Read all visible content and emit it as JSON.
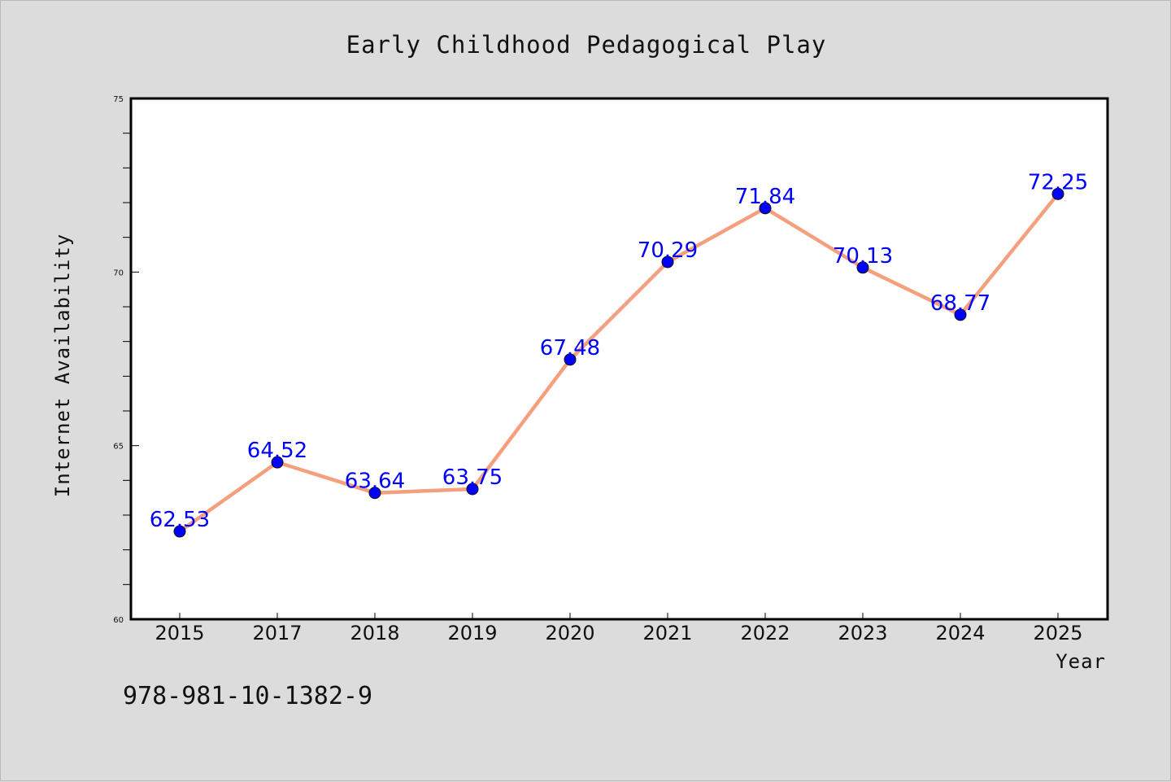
{
  "chart_data": {
    "type": "line",
    "title": "Early Childhood Pedagogical Play",
    "xlabel": "Year",
    "ylabel": "Internet Availability",
    "categories": [
      "2015",
      "2017",
      "2018",
      "2019",
      "2020",
      "2021",
      "2022",
      "2023",
      "2024",
      "2025"
    ],
    "series": [
      {
        "values": [
          62.53,
          64.52,
          63.64,
          63.75,
          67.48,
          70.29,
          71.84,
          70.13,
          68.77,
          72.25
        ]
      }
    ],
    "data_labels": [
      "62.53",
      "64.52",
      "63.64",
      "63.75",
      "67.48",
      "70.29",
      "71.84",
      "70.13",
      "68.77",
      "72.25"
    ],
    "ylim": [
      60,
      75
    ],
    "y_ticks": [
      "60",
      "65",
      "70",
      "75"
    ],
    "y_tick_values": [
      60,
      65,
      70,
      75
    ],
    "grid": false,
    "legend": "none",
    "colors": {
      "line": "#f4a07f",
      "marker": "#0000ff",
      "data_label": "#0000ff",
      "background": "#dcdcdc",
      "plot_background": "#ffffff"
    }
  },
  "footer_text": "978-981-10-1382-9"
}
